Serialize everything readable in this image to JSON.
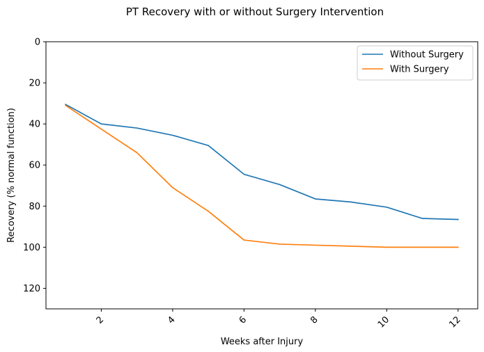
{
  "chart_data": {
    "type": "line",
    "title": "PT Recovery with or without Surgery Intervention",
    "xlabel": "Weeks after Injury",
    "ylabel": "Recovery (% normal function)",
    "x": [
      1,
      2,
      3,
      4,
      5,
      6,
      7,
      8,
      9,
      10,
      11,
      12
    ],
    "xlim": [
      0.45,
      12.55
    ],
    "ylim": [
      130,
      0
    ],
    "y_inverted": true,
    "xticks": [
      2,
      4,
      6,
      8,
      10,
      12
    ],
    "yticks": [
      0,
      20,
      40,
      60,
      80,
      100,
      120
    ],
    "xtick_rotation": 45,
    "grid": false,
    "legend_position": "top-right",
    "series": [
      {
        "name": "Without Surgery",
        "color": "#1f77b4",
        "values": [
          30.5,
          40,
          42,
          45.5,
          50.5,
          64.5,
          69.5,
          76.5,
          78,
          80.5,
          86,
          86.5
        ]
      },
      {
        "name": "With Surgery",
        "color": "#ff7f0e",
        "values": [
          31,
          42.5,
          54,
          71,
          82.5,
          96.5,
          98.5,
          99,
          99.5,
          100,
          100,
          100
        ]
      }
    ]
  }
}
